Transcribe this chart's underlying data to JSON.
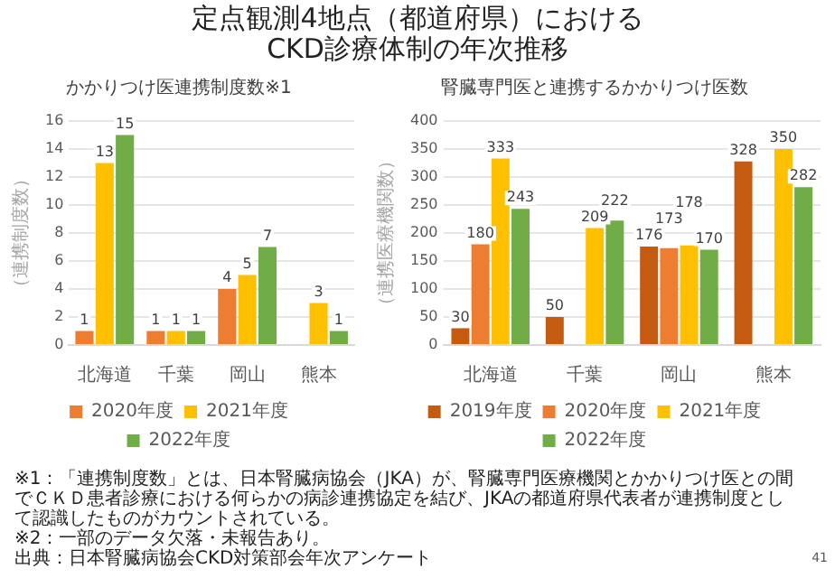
{
  "chart_data": [
    {
      "type": "bar",
      "title": "定点観測4地点（都道府県）における\nCKD診療体制の年次推移",
      "subtitle": "かかりつけ医連携制度数※1",
      "ylabel": "（連携制度数）",
      "categories": [
        "北海道",
        "千葉",
        "岡山",
        "熊本"
      ],
      "series": [
        {
          "name": "2020年度",
          "color": "#ed7d31",
          "values": [
            1,
            1,
            4,
            null
          ]
        },
        {
          "name": "2021年度",
          "color": "#ffc000",
          "values": [
            13,
            1,
            5,
            3
          ]
        },
        {
          "name": "2022年度",
          "color": "#70ad47",
          "values": [
            15,
            1,
            7,
            1
          ]
        }
      ],
      "ylim": [
        0,
        16
      ],
      "yticks": [
        0,
        2,
        4,
        6,
        8,
        10,
        12,
        14,
        16
      ],
      "grid": "y",
      "legend": "bottom",
      "data_labels": true,
      "annotations": [
        "※1：「連携制度数」とは、日本腎臓病協会（JKA）が、腎臓専門医療機関とかかりつけ医との間でＣＫＤ患者診療における何らかの病診連携協定を結び、JKAの都道府県代表者が連携制度として認識したものがカウントされている。",
        "※2：一部のデータ欠落・未報告あり。",
        "出典：日本腎臓病協会CKD対策部会年次アンケート",
        "41"
      ]
    },
    {
      "type": "bar",
      "subtitle": "腎臓専門医と連携するかかりつけ医数",
      "ylabel": "（連携医療機関数）",
      "categories": [
        "北海道",
        "千葉",
        "岡山",
        "熊本"
      ],
      "series": [
        {
          "name": "2019年度",
          "color": "#c55a11",
          "values": [
            30,
            50,
            176,
            328
          ]
        },
        {
          "name": "2020年度",
          "color": "#ed7d31",
          "values": [
            180,
            null,
            173,
            null
          ]
        },
        {
          "name": "2021年度",
          "color": "#ffc000",
          "values": [
            333,
            209,
            178,
            350
          ]
        },
        {
          "name": "2022年度",
          "color": "#70ad47",
          "values": [
            243,
            222,
            170,
            282
          ]
        }
      ],
      "ylim": [
        0,
        400
      ],
      "yticks": [
        0,
        50,
        100,
        150,
        200,
        250,
        300,
        350,
        400
      ],
      "grid": "y",
      "legend": "bottom",
      "data_labels": true
    }
  ]
}
